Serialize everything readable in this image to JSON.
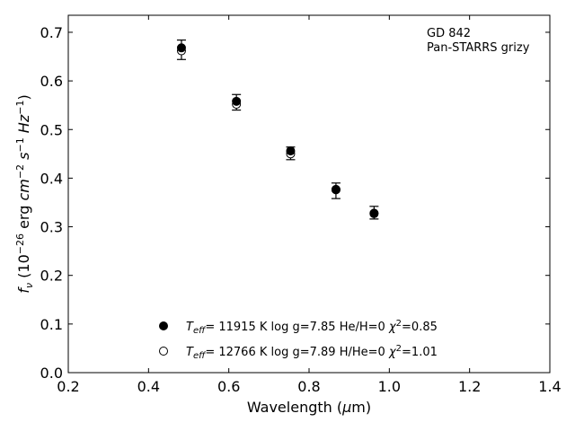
{
  "chart_data": {
    "type": "scatter",
    "xlabel": "Wavelength (μm)",
    "ylabel": "f_ν (10^-26 erg cm^-2 s^-1 Hz^-1)",
    "xlim": [
      0.2,
      1.4
    ],
    "ylim": [
      0.0,
      0.735
    ],
    "xticks": [
      0.2,
      0.4,
      0.6,
      0.8,
      1.0,
      1.2,
      1.4
    ],
    "yticks": [
      0.0,
      0.1,
      0.2,
      0.3,
      0.4,
      0.5,
      0.6,
      0.7
    ],
    "grid": false,
    "annotation": [
      "GD 842",
      "Pan-STARRS grizy"
    ],
    "observed": {
      "x": [
        0.482,
        0.619,
        0.754,
        0.867,
        0.962
      ],
      "y": [
        0.664,
        0.556,
        0.451,
        0.374,
        0.329
      ],
      "err": [
        0.02,
        0.016,
        0.013,
        0.016,
        0.013
      ]
    },
    "series": [
      {
        "name": "T_eff= 11915 K  log g=7.85  He/H=0  χ²=0.85",
        "marker": "filled-circle",
        "x": [
          0.482,
          0.619,
          0.754,
          0.867,
          0.962
        ],
        "y": [
          0.668,
          0.558,
          0.456,
          0.377,
          0.327
        ]
      },
      {
        "name": "T_eff= 12766 K  log g=7.89  H/He=0  χ²=1.01",
        "marker": "open-circle",
        "x": [
          0.482,
          0.619,
          0.754,
          0.867,
          0.962
        ],
        "y": [
          0.662,
          0.552,
          0.45,
          0.376,
          0.328
        ]
      }
    ],
    "legend": {
      "placement": "lower-center",
      "entries": [
        {
          "teff": "11915",
          "logg": "7.85",
          "comp": "He/H=0",
          "chi2": "0.85"
        },
        {
          "teff": "12766",
          "logg": "7.89",
          "comp": "H/He=0",
          "chi2": "1.01"
        }
      ]
    }
  }
}
